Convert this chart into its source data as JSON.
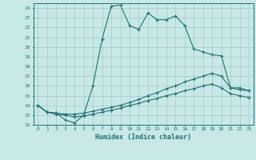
{
  "xlabel": "Humidex (Indice chaleur)",
  "background_color": "#c8e8e8",
  "grid_color": "#a0c8c8",
  "line_color": "#207070",
  "xlim": [
    -0.5,
    23.5
  ],
  "ylim": [
    12,
    24.5
  ],
  "yticks": [
    12,
    13,
    14,
    15,
    16,
    17,
    18,
    19,
    20,
    21,
    22,
    23,
    24
  ],
  "xticks": [
    0,
    1,
    2,
    3,
    4,
    5,
    6,
    7,
    8,
    9,
    10,
    11,
    12,
    13,
    14,
    15,
    16,
    17,
    18,
    19,
    20,
    21,
    22,
    23
  ],
  "line1_x": [
    0,
    1,
    2,
    3,
    4,
    5,
    6,
    7,
    8,
    9,
    10,
    11,
    12,
    13,
    14,
    15,
    16,
    17,
    18,
    19,
    20,
    21,
    22,
    23
  ],
  "line1_y": [
    14,
    13.3,
    13.2,
    12.5,
    12.2,
    13,
    16,
    20.8,
    24.2,
    24.3,
    22.2,
    21.8,
    23.5,
    22.8,
    22.8,
    23.2,
    22.2,
    19.8,
    19.5,
    19.2,
    19.1,
    15.8,
    15.8,
    15.5
  ],
  "line2_x": [
    0,
    1,
    2,
    3,
    4,
    5,
    6,
    7,
    8,
    9,
    10,
    11,
    12,
    13,
    14,
    15,
    16,
    17,
    18,
    19,
    20,
    21,
    22,
    23
  ],
  "line2_y": [
    14,
    13.3,
    13.2,
    13.1,
    13.1,
    13.2,
    13.4,
    13.6,
    13.8,
    14.0,
    14.3,
    14.6,
    15.0,
    15.3,
    15.7,
    16.0,
    16.4,
    16.7,
    17.0,
    17.3,
    17.0,
    15.8,
    15.6,
    15.5
  ],
  "line3_x": [
    0,
    1,
    2,
    3,
    4,
    5,
    6,
    7,
    8,
    9,
    10,
    11,
    12,
    13,
    14,
    15,
    16,
    17,
    18,
    19,
    20,
    21,
    22,
    23
  ],
  "line3_y": [
    14,
    13.3,
    13.1,
    13.0,
    12.8,
    12.9,
    13.1,
    13.3,
    13.5,
    13.7,
    14.0,
    14.2,
    14.5,
    14.7,
    15.0,
    15.2,
    15.5,
    15.7,
    16.0,
    16.2,
    15.8,
    15.2,
    15.0,
    14.8
  ],
  "tick_fontsize": 4.5,
  "xlabel_fontsize": 6.0
}
